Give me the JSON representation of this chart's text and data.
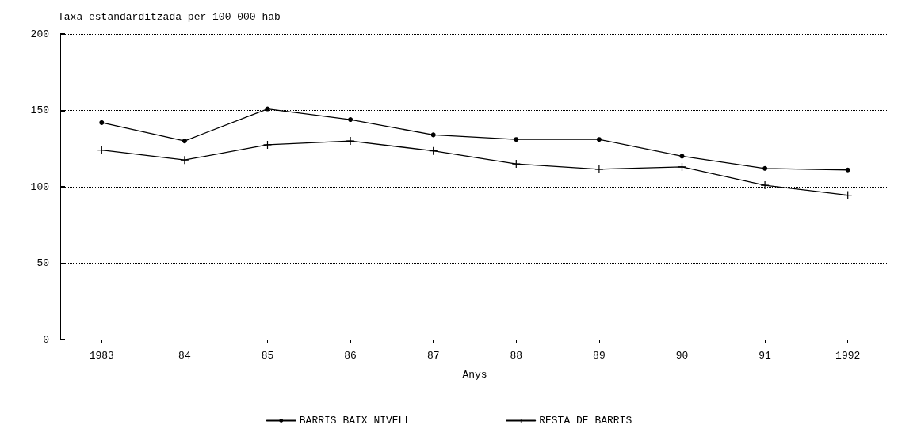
{
  "chart_data": {
    "type": "line",
    "title": "Taxa estandarditzada per 100 000 hab",
    "xlabel": "Anys",
    "categories": [
      "1983",
      "84",
      "85",
      "86",
      "87",
      "88",
      "89",
      "90",
      "91",
      "1992"
    ],
    "series": [
      {
        "name": "BARRIS BAIX NIVELL",
        "color": "#000000",
        "marker": "circle",
        "values": [
          142,
          130,
          151,
          144,
          134,
          131,
          131,
          120,
          112,
          111
        ]
      },
      {
        "name": "RESTA DE BARRIS",
        "color": "#000000",
        "marker": "cross",
        "values": [
          124,
          117.5,
          127.5,
          130,
          123.5,
          115,
          111.5,
          113,
          101,
          94.5
        ]
      }
    ],
    "ylim": [
      0,
      200
    ],
    "yticks": [
      0,
      50,
      100,
      150,
      200
    ],
    "grid": "y",
    "legend": "bottom",
    "line_style": "solid"
  }
}
